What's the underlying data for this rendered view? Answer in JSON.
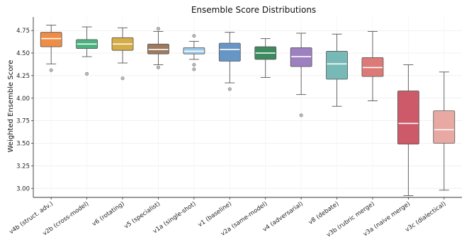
{
  "chart_data": {
    "type": "box",
    "title": "Ensemble Score Distributions",
    "xlabel": "",
    "ylabel": "Weighted Ensemble Score",
    "ylim": [
      2.9,
      4.9
    ],
    "yticks": [
      "3.00",
      "3.25",
      "3.50",
      "3.75",
      "4.00",
      "4.25",
      "4.50",
      "4.75"
    ],
    "grid": true,
    "categories": [
      {
        "label": "v4b (struct. adv.)",
        "color": "#ef8c45",
        "min": 4.38,
        "q1": 4.57,
        "median": 4.66,
        "q3": 4.73,
        "max": 4.81,
        "outliers": [
          4.31
        ]
      },
      {
        "label": "v2b (cross-model)",
        "color": "#4ab17f",
        "min": 4.46,
        "q1": 4.55,
        "median": 4.6,
        "q3": 4.65,
        "max": 4.79,
        "outliers": [
          4.27
        ]
      },
      {
        "label": "v6 (rotating)",
        "color": "#d5ad48",
        "min": 4.39,
        "q1": 4.53,
        "median": 4.6,
        "q3": 4.67,
        "max": 4.78,
        "outliers": [
          4.22
        ]
      },
      {
        "label": "v5 (specialist)",
        "color": "#9d7a5f",
        "min": 4.37,
        "q1": 4.49,
        "median": 4.54,
        "q3": 4.6,
        "max": 4.74,
        "outliers": [
          4.34,
          4.77
        ]
      },
      {
        "label": "v1a (single-shot)",
        "color": "#9bc7e8",
        "min": 4.43,
        "q1": 4.49,
        "median": 4.52,
        "q3": 4.56,
        "max": 4.63,
        "outliers": [
          4.69,
          4.37,
          4.32
        ]
      },
      {
        "label": "v1 (baseline)",
        "color": "#6796c6",
        "min": 4.17,
        "q1": 4.41,
        "median": 4.54,
        "q3": 4.61,
        "max": 4.73,
        "outliers": [
          4.1
        ]
      },
      {
        "label": "v2a (same-model)",
        "color": "#3e8a5f",
        "min": 4.23,
        "q1": 4.43,
        "median": 4.5,
        "q3": 4.57,
        "max": 4.66,
        "outliers": []
      },
      {
        "label": "v4 (adversarial)",
        "color": "#9c80c0",
        "min": 4.04,
        "q1": 4.35,
        "median": 4.46,
        "q3": 4.56,
        "max": 4.72,
        "outliers": [
          3.81
        ]
      },
      {
        "label": "v8 (debate)",
        "color": "#76b9b6",
        "min": 3.91,
        "q1": 4.21,
        "median": 4.38,
        "q3": 4.52,
        "max": 4.71,
        "outliers": []
      },
      {
        "label": "v3b (rubric merge)",
        "color": "#dc7a78",
        "min": 3.97,
        "q1": 4.24,
        "median": 4.34,
        "q3": 4.45,
        "max": 4.74,
        "outliers": []
      },
      {
        "label": "v3a (naive merge)",
        "color": "#cd5a68",
        "min": 2.92,
        "q1": 3.49,
        "median": 3.72,
        "q3": 4.08,
        "max": 4.37,
        "outliers": []
      },
      {
        "label": "v3c (dialectical)",
        "color": "#e8a9a3",
        "min": 2.98,
        "q1": 3.5,
        "median": 3.65,
        "q3": 3.86,
        "max": 4.29,
        "outliers": []
      }
    ]
  }
}
